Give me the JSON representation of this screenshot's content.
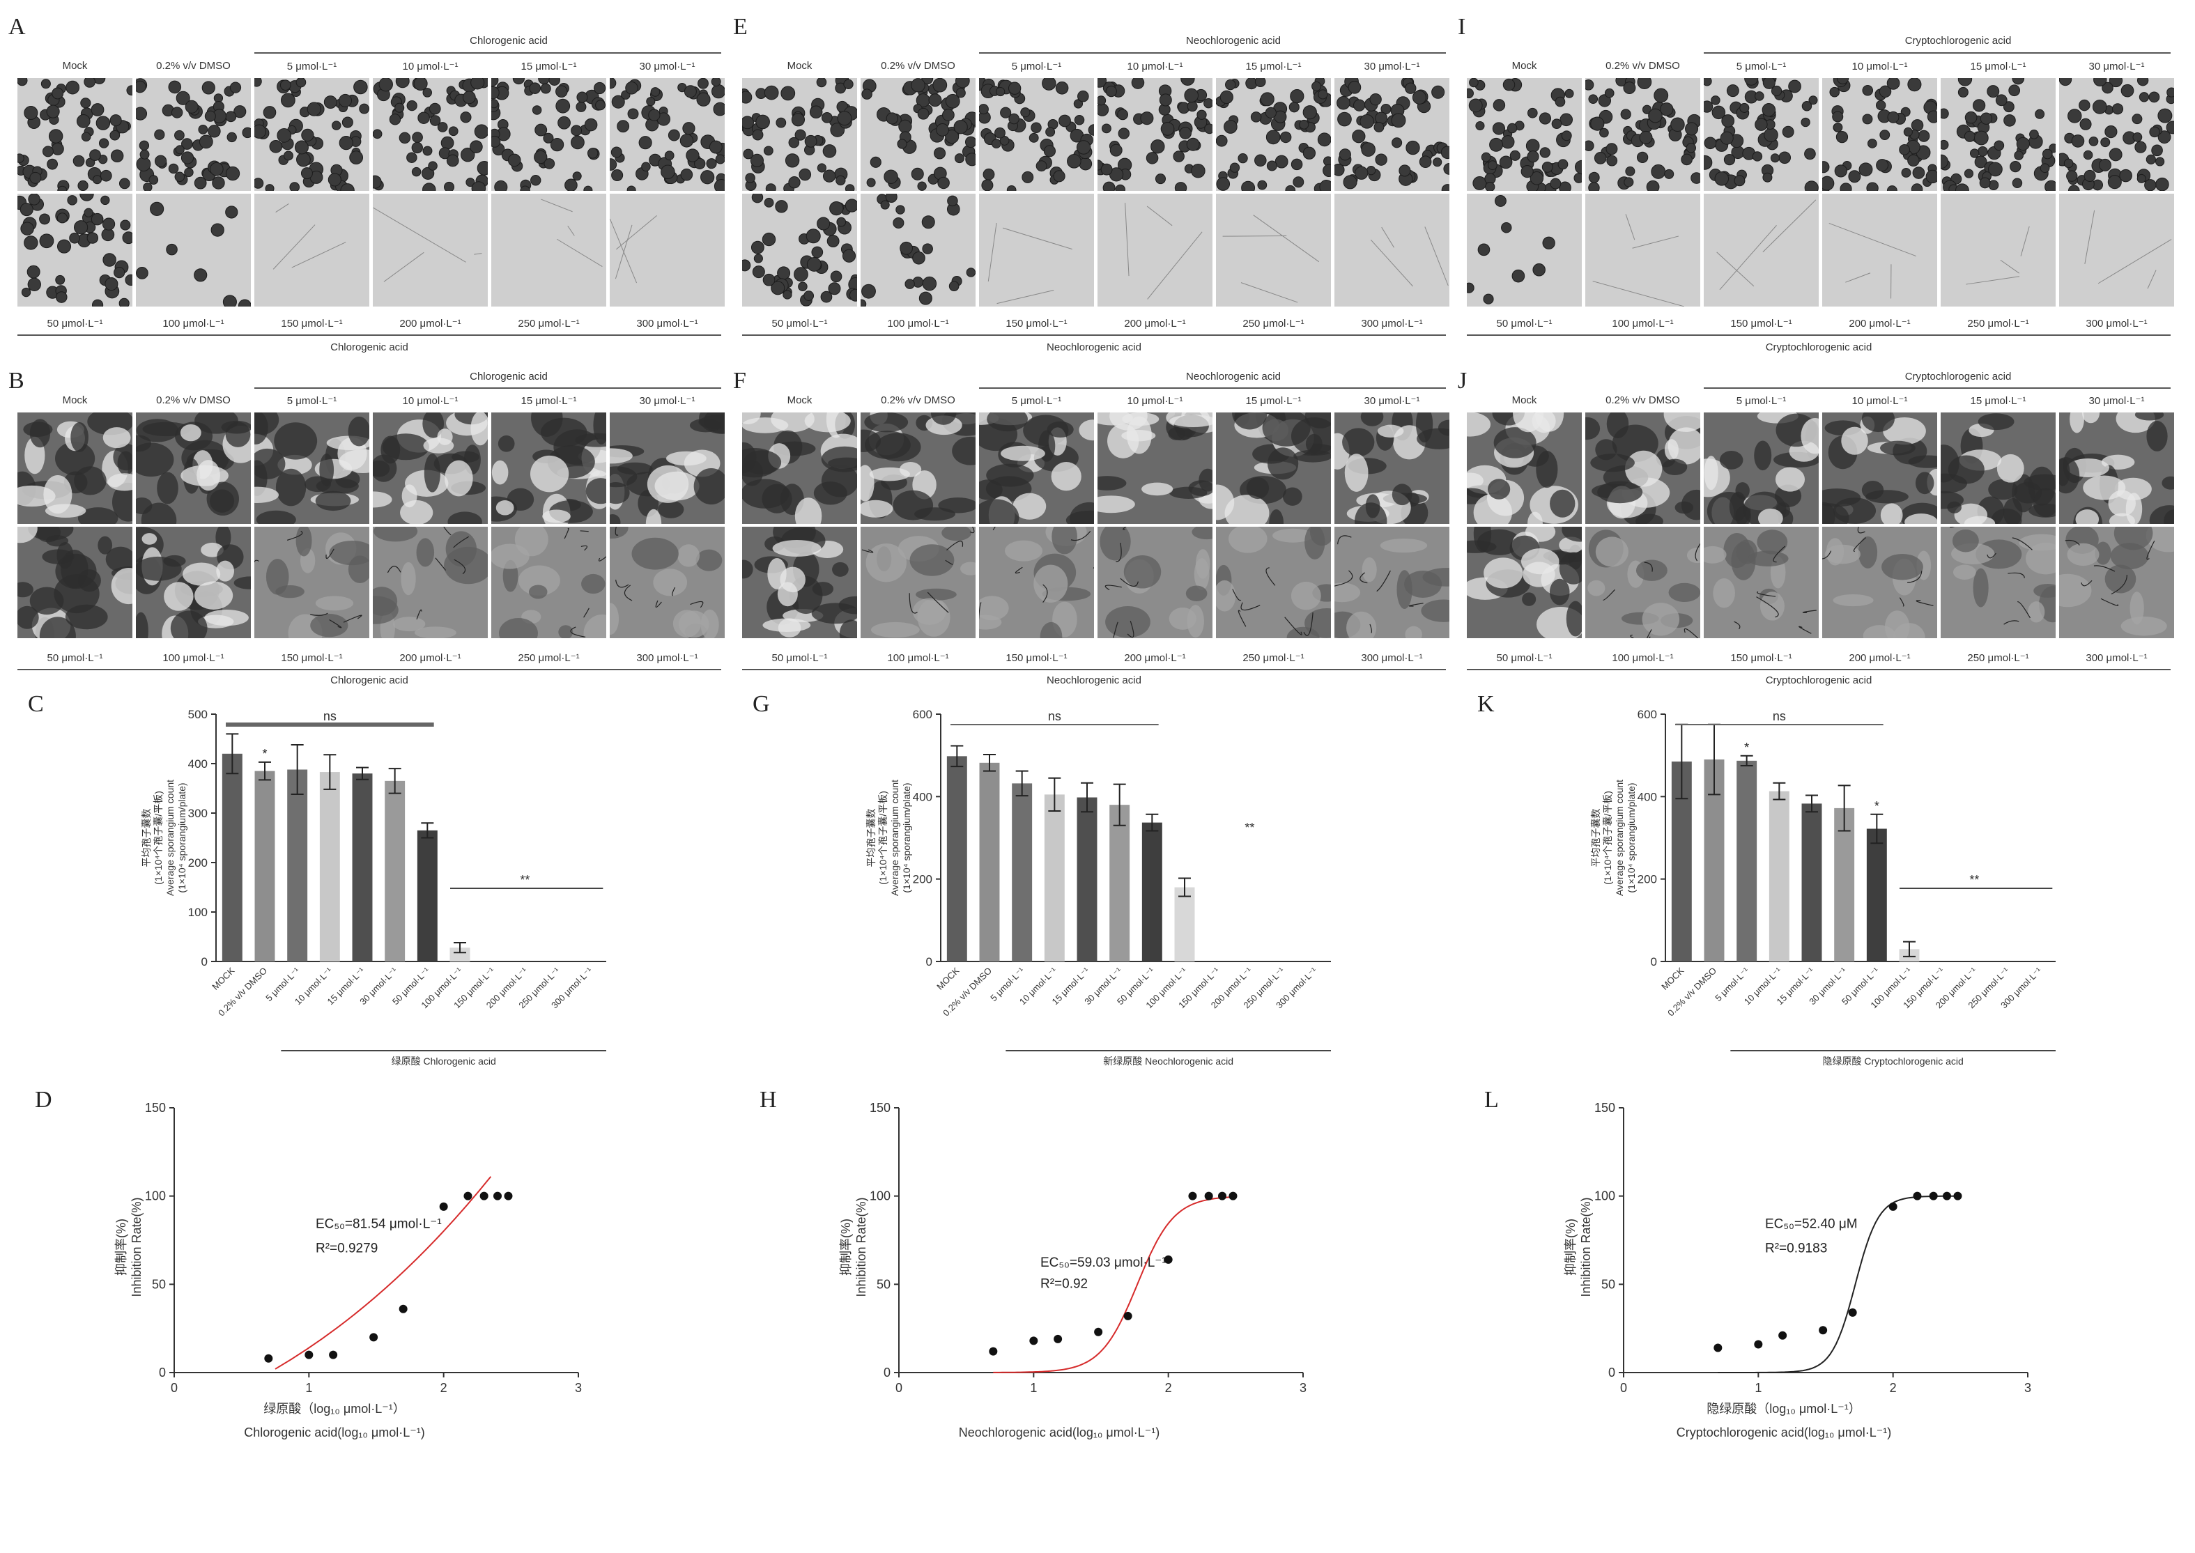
{
  "columns": [
    {
      "compound_cn": "绿原酸",
      "compound_en": "Chlorogenic acid",
      "mic_panel": "A",
      "myc_panel": "B",
      "bar_panel": "C",
      "curve_panel": "D",
      "mock": "Mock",
      "dmso": "0.2% v/v DMSO",
      "top_concs": [
        "5 μmol·L⁻¹",
        "10 μmol·L⁻¹",
        "15 μmol·L⁻¹",
        "30 μmol·L⁻¹"
      ],
      "bottom_concs": [
        "50 μmol·L⁻¹",
        "100 μmol·L⁻¹",
        "150 μmol·L⁻¹",
        "200 μmol·L⁻¹",
        "250 μmol·L⁻¹",
        "300 μmol·L⁻¹"
      ],
      "bar": {
        "type": "bar",
        "ylabel_cn": "平均孢子囊数",
        "ylabel_unit": "(1×10⁴个孢子囊/平板)",
        "ylabel_en": "Average sporangium count",
        "ylabel_en2": "(1×10⁴ sporangium/plate)",
        "yticks": [
          "0",
          "100",
          "200",
          "300",
          "400",
          "500"
        ],
        "ylim": [
          0,
          500
        ],
        "categories": [
          "MOCK",
          "0.2% v/v DMSO",
          "5 μmol·L⁻¹",
          "10 μmol·L⁻¹",
          "15 μmol·L⁻¹",
          "30 μmol·L⁻¹",
          "50 μmol·L⁻¹",
          "100 μmol·L⁻¹",
          "150 μmol·L⁻¹",
          "200 μmol·L⁻¹",
          "250 μmol·L⁻¹",
          "300 μmol·L⁻¹"
        ],
        "values": [
          420,
          385,
          388,
          383,
          380,
          365,
          265,
          28,
          0,
          0,
          0,
          0
        ],
        "errors": [
          40,
          18,
          50,
          35,
          12,
          25,
          15,
          10,
          0,
          0,
          0,
          0
        ],
        "marks": [
          "",
          "*",
          "",
          "",
          "",
          "",
          "",
          "",
          "",
          "",
          "",
          ""
        ],
        "ns": "ns",
        "sig": "**",
        "xgroup": "绿原酸 Chlorogenic acid"
      },
      "curve": {
        "type": "scatter",
        "ylabel_cn": "抑制率(%)",
        "ylabel_en": "Inhibition Rate(%)",
        "xlabel_cn": "绿原酸（log₁₀ μmol·L⁻¹）",
        "xlabel_en": "Chlorogenic acid(log₁₀ μmol·L⁻¹)",
        "xlim": [
          0,
          3
        ],
        "ylim": [
          0,
          150
        ],
        "xticks": [
          "0",
          "1",
          "2",
          "3"
        ],
        "yticks": [
          "0",
          "50",
          "100",
          "150"
        ],
        "x": [
          0.7,
          1.0,
          1.18,
          1.48,
          1.7,
          2.0,
          2.18,
          2.3,
          2.4,
          2.48
        ],
        "y": [
          8,
          10,
          10,
          20,
          36,
          94,
          100,
          100,
          100,
          100
        ],
        "fit": "linear",
        "ec50": "EC₅₀=81.54 μmol·L⁻¹",
        "r2": "R²=0.9279",
        "line_color": "#d62b2b"
      }
    },
    {
      "compound_cn": "新绿原酸",
      "compound_en": "Neochlorogenic acid",
      "mic_panel": "E",
      "myc_panel": "F",
      "bar_panel": "G",
      "curve_panel": "H",
      "mock": "Mock",
      "dmso": "0.2% v/v DMSO",
      "top_concs": [
        "5 μmol·L⁻¹",
        "10 μmol·L⁻¹",
        "15 μmol·L⁻¹",
        "30 μmol·L⁻¹"
      ],
      "bottom_concs": [
        "50 μmol·L⁻¹",
        "100 μmol·L⁻¹",
        "150 μmol·L⁻¹",
        "200 μmol·L⁻¹",
        "250 μmol·L⁻¹",
        "300 μmol·L⁻¹"
      ],
      "bar": {
        "type": "bar",
        "ylabel_cn": "平均孢子囊数",
        "ylabel_unit": "(1×10⁴个孢子囊/平板)",
        "ylabel_en": "Average sporangium count",
        "ylabel_en2": "(1×10⁴ sporangium/plate)",
        "yticks": [
          "0",
          "200",
          "400",
          "600"
        ],
        "ylim": [
          0,
          600
        ],
        "categories": [
          "MOCK",
          "0.2% v/v DMSO",
          "5 μmol·L⁻¹",
          "10 μmol·L⁻¹",
          "15 μmol·L⁻¹",
          "30 μmol·L⁻¹",
          "50 μmol·L⁻¹",
          "100 μmol·L⁻¹",
          "150 μmol·L⁻¹",
          "200 μmol·L⁻¹",
          "250 μmol·L⁻¹",
          "300 μmol·L⁻¹"
        ],
        "values": [
          498,
          482,
          432,
          405,
          398,
          380,
          337,
          180,
          0,
          0,
          0,
          0
        ],
        "errors": [
          25,
          20,
          30,
          40,
          35,
          50,
          20,
          22,
          0,
          0,
          0,
          0
        ],
        "marks": [
          "",
          "",
          "",
          "",
          "",
          "",
          "",
          "",
          "",
          "",
          "",
          ""
        ],
        "ns": "ns",
        "sig": "**",
        "xgroup": "新绿原酸 Neochlorogenic acid"
      },
      "curve": {
        "type": "scatter",
        "ylabel_cn": "抑制率(%)",
        "ylabel_en": "Inhibition Rate(%)",
        "xlabel_cn": "",
        "xlabel_en": "Neochlorogenic acid(log₁₀ μmol·L⁻¹)",
        "xlim": [
          0,
          3
        ],
        "ylim": [
          0,
          150
        ],
        "xticks": [
          "0",
          "1",
          "2",
          "3"
        ],
        "yticks": [
          "0",
          "50",
          "100",
          "150"
        ],
        "x": [
          0.7,
          1.0,
          1.18,
          1.48,
          1.7,
          2.0,
          2.18,
          2.3,
          2.4,
          2.48
        ],
        "y": [
          12,
          18,
          19,
          23,
          32,
          64,
          100,
          100,
          100,
          100
        ],
        "fit": "logistic",
        "ec50_log": 1.77,
        "slope": 3.2,
        "ec50": "EC₅₀=59.03 μmol·L⁻¹",
        "r2": "R²=0.92",
        "line_color": "#d62b2b"
      }
    },
    {
      "compound_cn": "隐绿原酸",
      "compound_en": "Cryptochlorogenic acid",
      "mic_panel": "I",
      "myc_panel": "J",
      "bar_panel": "K",
      "curve_panel": "L",
      "mock": "Mock",
      "dmso": "0.2% v/v DMSO",
      "top_concs": [
        "5 μmol·L⁻¹",
        "10 μmol·L⁻¹",
        "15 μmol·L⁻¹",
        "30 μmol·L⁻¹"
      ],
      "bottom_concs": [
        "50 μmol·L⁻¹",
        "100 μmol·L⁻¹",
        "150 μmol·L⁻¹",
        "200 μmol·L⁻¹",
        "250 μmol·L⁻¹",
        "300 μmol·L⁻¹"
      ],
      "bar": {
        "type": "bar",
        "ylabel_cn": "平均孢子囊数",
        "ylabel_unit": "(1×10⁴个孢子囊/平板)",
        "ylabel_en": "Average sporangium count",
        "ylabel_en2": "(1×10⁴ sporangium/plate)",
        "yticks": [
          "0",
          "200",
          "400",
          "600"
        ],
        "ylim": [
          0,
          600
        ],
        "categories": [
          "MOCK",
          "0.2% v/v DMSO",
          "5 μmol·L⁻¹",
          "10 μmol·L⁻¹",
          "15 μmol·L⁻¹",
          "30 μmol·L⁻¹",
          "50 μmol·L⁻¹",
          "100 μmol·L⁻¹",
          "150 μmol·L⁻¹",
          "200 μmol·L⁻¹",
          "250 μmol·L⁻¹",
          "300 μmol·L⁻¹"
        ],
        "values": [
          485,
          490,
          487,
          413,
          383,
          372,
          322,
          30,
          0,
          0,
          0,
          0
        ],
        "errors": [
          90,
          85,
          12,
          20,
          20,
          55,
          35,
          18,
          0,
          0,
          0,
          0
        ],
        "marks": [
          "",
          "",
          "*",
          "",
          "",
          "",
          "*",
          "",
          "",
          "",
          "",
          ""
        ],
        "ns": "ns",
        "sig": "**",
        "xgroup": "隐绿原酸 Cryptochlorogenic acid"
      },
      "curve": {
        "type": "scatter",
        "ylabel_cn": "抑制率(%)",
        "ylabel_en": "Inhibition Rate(%)",
        "xlabel_cn": "隐绿原酸（log₁₀ μmol·L⁻¹）",
        "xlabel_en": "Cryptochlorogenic acid(log₁₀ μmol·L⁻¹)",
        "xlim": [
          0,
          3
        ],
        "ylim": [
          0,
          150
        ],
        "xticks": [
          "0",
          "1",
          "2",
          "3"
        ],
        "yticks": [
          "0",
          "50",
          "100",
          "150"
        ],
        "x": [
          0.7,
          1.0,
          1.18,
          1.48,
          1.7,
          2.0,
          2.18,
          2.3,
          2.4,
          2.48
        ],
        "y": [
          14,
          16,
          21,
          24,
          34,
          94,
          100,
          100,
          100,
          100
        ],
        "fit": "logistic",
        "ec50_log": 1.72,
        "slope": 5.0,
        "ec50": "EC₅₀=52.40 μM",
        "r2": "R²=0.9183",
        "line_color": "#222222"
      }
    }
  ]
}
